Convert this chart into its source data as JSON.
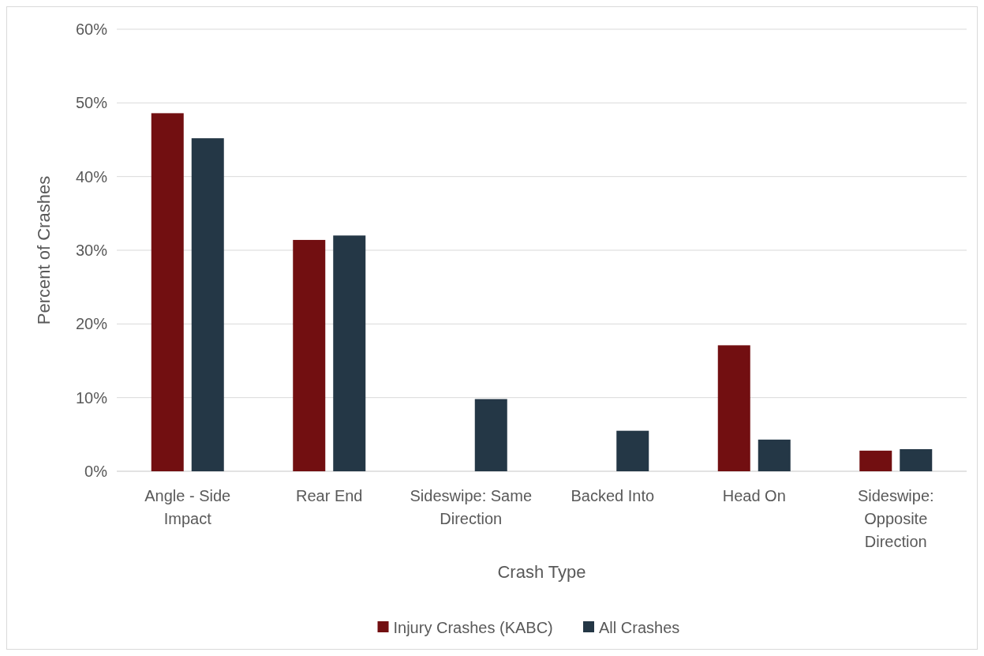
{
  "chart_data": {
    "type": "bar",
    "xlabel": "Crash Type",
    "ylabel": "Percent of Crashes",
    "categories": [
      "Angle - Side Impact",
      "Rear End",
      "Sideswipe: Same Direction",
      "Backed Into",
      "Head On",
      "Sideswipe: Opposite Direction"
    ],
    "series": [
      {
        "name": "Injury Crashes (KABC)",
        "color": "#720f11",
        "values": [
          48.6,
          31.4,
          0,
          0,
          17.1,
          2.8
        ]
      },
      {
        "name": "All Crashes",
        "color": "#243746",
        "values": [
          45.2,
          32.0,
          9.8,
          5.5,
          4.3,
          3.0
        ]
      }
    ],
    "ylim": [
      0,
      60
    ],
    "yticks": [
      {
        "value": 0,
        "label": "0%"
      },
      {
        "value": 10,
        "label": "10%"
      },
      {
        "value": 20,
        "label": "20%"
      },
      {
        "value": 30,
        "label": "30%"
      },
      {
        "value": 40,
        "label": "40%"
      },
      {
        "value": 50,
        "label": "50%"
      },
      {
        "value": 60,
        "label": "60%"
      }
    ],
    "grid": "y",
    "legend": "bottom"
  }
}
